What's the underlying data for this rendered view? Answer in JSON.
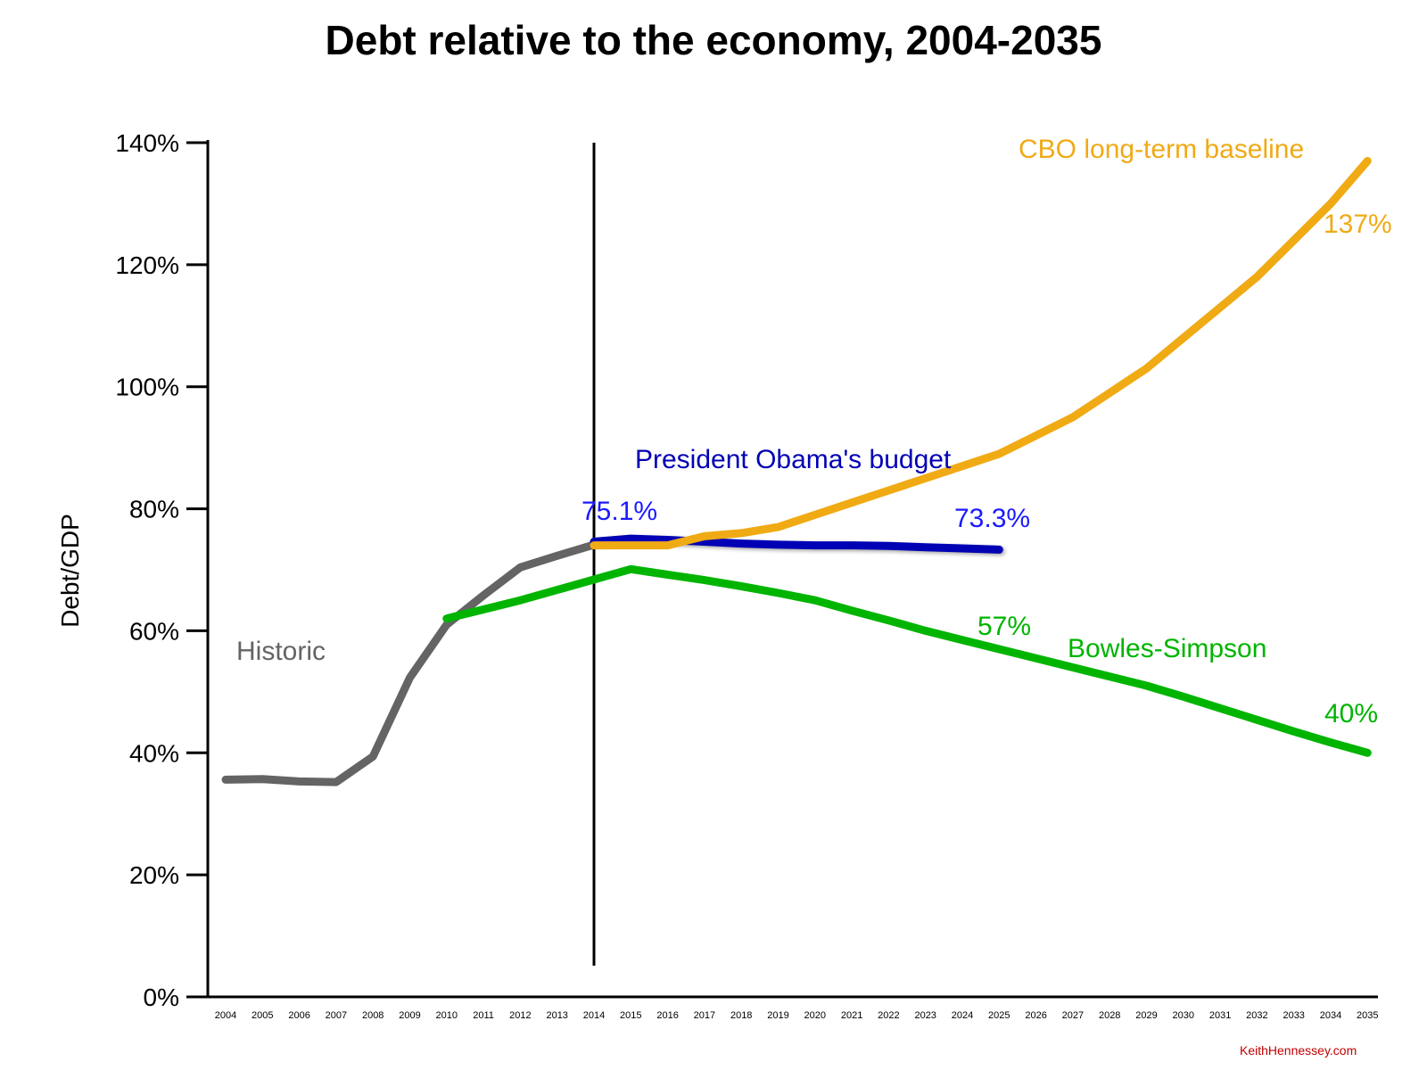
{
  "chart_data": {
    "type": "line",
    "title": "Debt relative to the economy, 2004-2035",
    "ylabel": "Debt/GDP",
    "xlabel": "",
    "ylim": [
      0,
      140
    ],
    "yticks": [
      0,
      20,
      40,
      60,
      80,
      100,
      120,
      140
    ],
    "ytick_labels": [
      "0%",
      "20%",
      "40%",
      "60%",
      "80%",
      "100%",
      "120%",
      "140%"
    ],
    "categories": [
      "2004",
      "2005",
      "2006",
      "2007",
      "2008",
      "2009",
      "2010",
      "2011",
      "2012",
      "2013",
      "2014",
      "2015",
      "2016",
      "2017",
      "2018",
      "2019",
      "2020",
      "2021",
      "2022",
      "2023",
      "2024",
      "2025",
      "2026",
      "2027",
      "2028",
      "2029",
      "2030",
      "2031",
      "2032",
      "2033",
      "2034",
      "2035"
    ],
    "divider_year": "2014",
    "grid": false,
    "series": [
      {
        "name": "Historic",
        "color": "#646464",
        "x": [
          "2004",
          "2005",
          "2006",
          "2007",
          "2008",
          "2009",
          "2010",
          "2011",
          "2012",
          "2013",
          "2014"
        ],
        "values": [
          35.6,
          35.7,
          35.3,
          35.2,
          39.4,
          52.3,
          61.0,
          65.8,
          70.4,
          72.3,
          74.1
        ]
      },
      {
        "name": "President Obama's budget",
        "color": "#0000b4",
        "x": [
          "2014",
          "2015",
          "2016",
          "2017",
          "2018",
          "2019",
          "2020",
          "2021",
          "2022",
          "2023",
          "2024",
          "2025"
        ],
        "values": [
          74.6,
          75.1,
          74.9,
          74.6,
          74.3,
          74.1,
          74.0,
          74.0,
          73.9,
          73.7,
          73.5,
          73.3
        ]
      },
      {
        "name": "CBO long-term baseline",
        "color": "#f0aa14",
        "x": [
          "2014",
          "2015",
          "2016",
          "2017",
          "2018",
          "2019",
          "2020",
          "2021",
          "2022",
          "2023",
          "2024",
          "2025",
          "2026",
          "2027",
          "2028",
          "2029",
          "2030",
          "2031",
          "2032",
          "2033",
          "2034",
          "2035"
        ],
        "values": [
          74.0,
          74.0,
          74.0,
          75.5,
          76.0,
          77.0,
          79.0,
          81.0,
          83.0,
          85.0,
          87.0,
          89.0,
          92.0,
          95.0,
          99.0,
          103.0,
          108.0,
          113.0,
          118.0,
          124.0,
          130.0,
          137.0
        ]
      },
      {
        "name": "Bowles-Simpson",
        "color": "#00b400",
        "x": [
          "2010",
          "2011",
          "2012",
          "2013",
          "2014",
          "2015",
          "2016",
          "2017",
          "2018",
          "2019",
          "2020",
          "2021",
          "2022",
          "2023",
          "2024",
          "2025",
          "2026",
          "2027",
          "2028",
          "2029",
          "2030",
          "2031",
          "2032",
          "2033",
          "2034",
          "2035"
        ],
        "values": [
          62.0,
          63.5,
          65.0,
          66.7,
          68.4,
          70.1,
          69.2,
          68.3,
          67.3,
          66.2,
          65.0,
          63.3,
          61.7,
          60.0,
          58.5,
          57.0,
          55.5,
          54.0,
          52.5,
          51.0,
          49.2,
          47.3,
          45.4,
          43.5,
          41.7,
          40.0
        ]
      }
    ],
    "annotations": [
      {
        "text": "Historic",
        "color": "#646464"
      },
      {
        "text": "President Obama's budget",
        "color": "#0000b4"
      },
      {
        "text": "75.1%",
        "color": "#1a1aff"
      },
      {
        "text": "73.3%",
        "color": "#1a1aff"
      },
      {
        "text": "CBO long-term baseline",
        "color": "#f0aa14"
      },
      {
        "text": "137%",
        "color": "#f0aa14"
      },
      {
        "text": "57%",
        "color": "#00b400"
      },
      {
        "text": "Bowles-Simpson",
        "color": "#00b400"
      },
      {
        "text": "40%",
        "color": "#00b400"
      }
    ]
  },
  "credit": {
    "text": "KeithHennessey.com",
    "color": "#c00000"
  }
}
